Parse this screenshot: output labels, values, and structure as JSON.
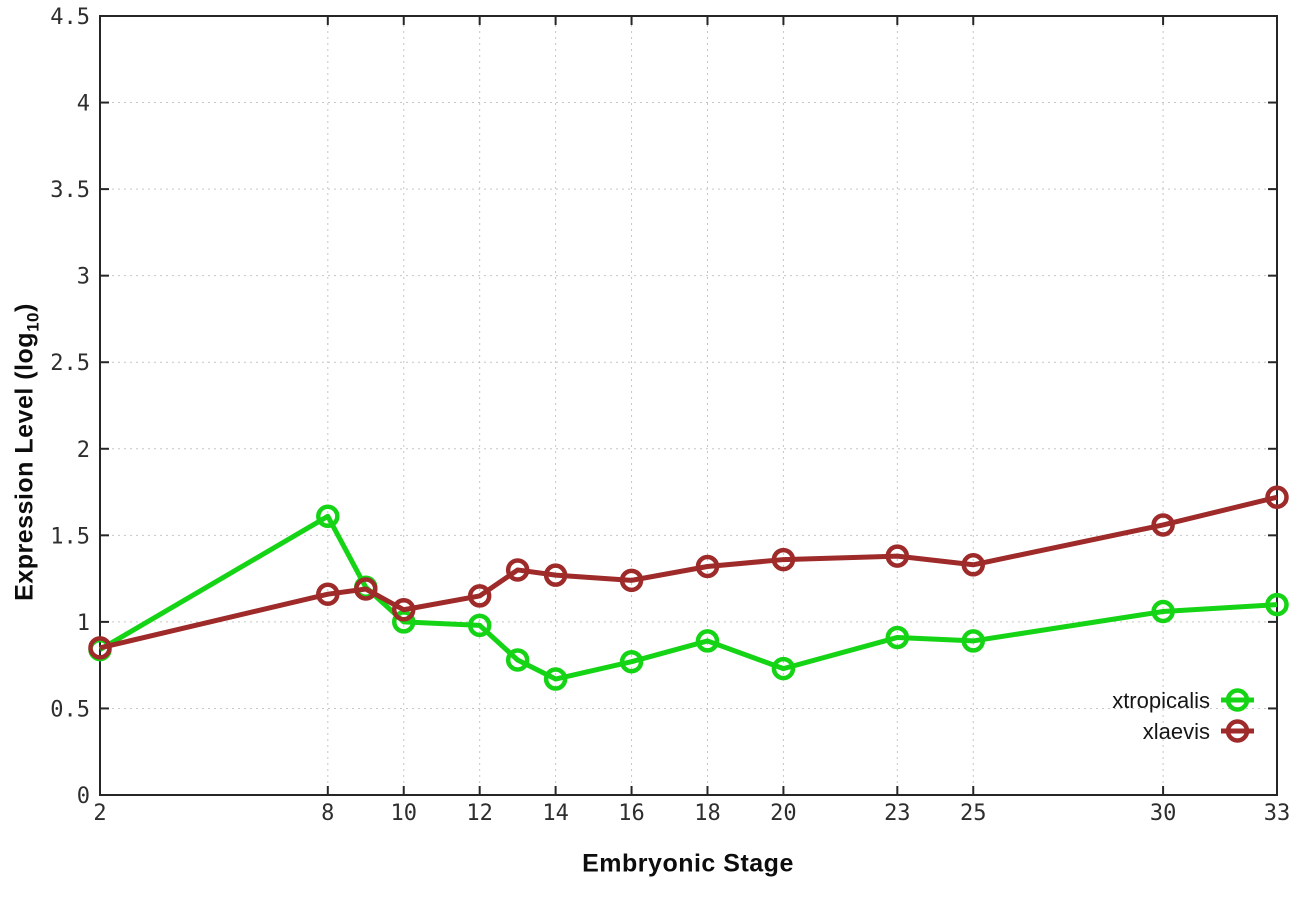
{
  "chart_data": {
    "type": "line",
    "xlabel": "Embryonic Stage",
    "ylabel": "Expression Level (log10)",
    "ylabel_parts": {
      "main": "Expression Level (log",
      "sub": "10",
      "close": ")"
    },
    "x": [
      2,
      8,
      9,
      10,
      12,
      13,
      14,
      16,
      18,
      20,
      23,
      25,
      30,
      33
    ],
    "x_tick_labels": [
      "2",
      "8",
      "10",
      "12",
      "14",
      "16",
      "18",
      "20",
      "23",
      "25",
      "30",
      "33"
    ],
    "x_tick_values": [
      2,
      8,
      10,
      12,
      14,
      16,
      18,
      20,
      23,
      25,
      30,
      33
    ],
    "y_tick_labels": [
      "0",
      "0.5",
      "1",
      "1.5",
      "2",
      "2.5",
      "3",
      "3.5",
      "4",
      "4.5"
    ],
    "y_tick_values": [
      0,
      0.5,
      1,
      1.5,
      2,
      2.5,
      3,
      3.5,
      4,
      4.5
    ],
    "xlim": [
      2,
      33
    ],
    "ylim": [
      0,
      4.5
    ],
    "grid": "dotted",
    "legend_position": "inside-bottom-right",
    "series": [
      {
        "name": "xtropicalis",
        "color": "#15d415",
        "values": [
          0.84,
          1.61,
          1.2,
          1.0,
          0.98,
          0.78,
          0.67,
          0.77,
          0.89,
          0.73,
          0.91,
          0.89,
          1.06,
          1.1
        ]
      },
      {
        "name": "xlaevis",
        "color": "#9e2a2a",
        "values": [
          0.85,
          1.16,
          1.19,
          1.07,
          1.15,
          1.3,
          1.27,
          1.24,
          1.32,
          1.36,
          1.38,
          1.33,
          1.56,
          1.72
        ]
      }
    ]
  },
  "style_colors": {
    "border": "#262626",
    "grid": "#c6c6c6",
    "tick": "#262626"
  }
}
